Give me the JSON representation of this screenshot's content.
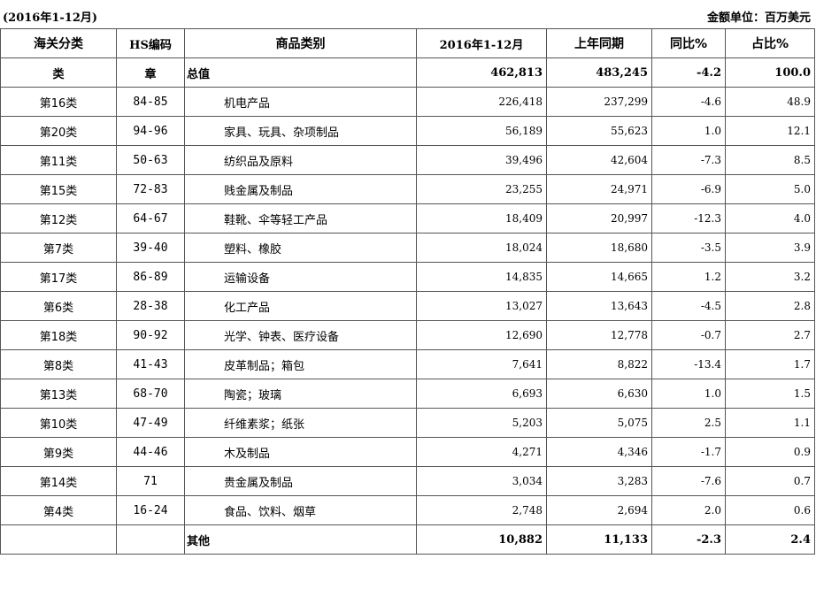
{
  "header": {
    "period": "(2016年1-12月)",
    "unit": "金额单位：百万美元"
  },
  "columns": [
    "海关分类",
    "HS编码",
    "商品类别",
    "2016年1-12月",
    "上年同期",
    "同比%",
    "占比%"
  ],
  "total_row": {
    "category": "类",
    "hs": "章",
    "name": "总值",
    "current": "462,813",
    "previous": "483,245",
    "yoy": "-4.2",
    "share": "100.0"
  },
  "rows": [
    {
      "category": "第16类",
      "hs": "84-85",
      "name": "机电产品",
      "current": "226,418",
      "previous": "237,299",
      "yoy": "-4.6",
      "share": "48.9"
    },
    {
      "category": "第20类",
      "hs": "94-96",
      "name": "家具、玩具、杂项制品",
      "current": "56,189",
      "previous": "55,623",
      "yoy": "1.0",
      "share": "12.1"
    },
    {
      "category": "第11类",
      "hs": "50-63",
      "name": "纺织品及原料",
      "current": "39,496",
      "previous": "42,604",
      "yoy": "-7.3",
      "share": "8.5"
    },
    {
      "category": "第15类",
      "hs": "72-83",
      "name": "贱金属及制品",
      "current": "23,255",
      "previous": "24,971",
      "yoy": "-6.9",
      "share": "5.0"
    },
    {
      "category": "第12类",
      "hs": "64-67",
      "name": "鞋靴、伞等轻工产品",
      "current": "18,409",
      "previous": "20,997",
      "yoy": "-12.3",
      "share": "4.0"
    },
    {
      "category": "第7类",
      "hs": "39-40",
      "name": "塑料、橡胶",
      "current": "18,024",
      "previous": "18,680",
      "yoy": "-3.5",
      "share": "3.9"
    },
    {
      "category": "第17类",
      "hs": "86-89",
      "name": "运输设备",
      "current": "14,835",
      "previous": "14,665",
      "yoy": "1.2",
      "share": "3.2"
    },
    {
      "category": "第6类",
      "hs": "28-38",
      "name": "化工产品",
      "current": "13,027",
      "previous": "13,643",
      "yoy": "-4.5",
      "share": "2.8"
    },
    {
      "category": "第18类",
      "hs": "90-92",
      "name": "光学、钟表、医疗设备",
      "current": "12,690",
      "previous": "12,778",
      "yoy": "-0.7",
      "share": "2.7"
    },
    {
      "category": "第8类",
      "hs": "41-43",
      "name": "皮革制品；箱包",
      "current": "7,641",
      "previous": "8,822",
      "yoy": "-13.4",
      "share": "1.7"
    },
    {
      "category": "第13类",
      "hs": "68-70",
      "name": "陶瓷；玻璃",
      "current": "6,693",
      "previous": "6,630",
      "yoy": "1.0",
      "share": "1.5"
    },
    {
      "category": "第10类",
      "hs": "47-49",
      "name": "纤维素浆；纸张",
      "current": "5,203",
      "previous": "5,075",
      "yoy": "2.5",
      "share": "1.1"
    },
    {
      "category": "第9类",
      "hs": "44-46",
      "name": "木及制品",
      "current": "4,271",
      "previous": "4,346",
      "yoy": "-1.7",
      "share": "0.9"
    },
    {
      "category": "第14类",
      "hs": "71",
      "name": "贵金属及制品",
      "current": "3,034",
      "previous": "3,283",
      "yoy": "-7.6",
      "share": "0.7"
    },
    {
      "category": "第4类",
      "hs": "16-24",
      "name": "食品、饮料、烟草",
      "current": "2,748",
      "previous": "2,694",
      "yoy": "2.0",
      "share": "0.6"
    }
  ],
  "other_row": {
    "category": "",
    "hs": "",
    "name": "其他",
    "current": "10,882",
    "previous": "11,133",
    "yoy": "-2.3",
    "share": "2.4"
  }
}
